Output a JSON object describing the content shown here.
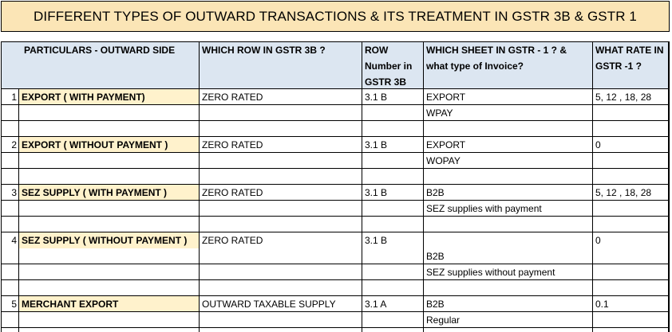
{
  "title": "DIFFERENT TYPES OF OUTWARD TRANSACTIONS & ITS TREATMENT IN GSTR 3B & GSTR 1",
  "headers": {
    "particulars": "PARTICULARS - OUTWARD SIDE",
    "row_3b": "WHICH ROW IN GSTR 3B ?",
    "row_number_1": "ROW",
    "row_number_2": "Number in",
    "row_number_3": "GSTR 3B",
    "sheet_1": "WHICH SHEET IN GSTR - 1 ? &",
    "sheet_2": "what type of Invoice?",
    "rate_1": "WHAT RATE IN",
    "rate_2": "GSTR -1 ?"
  },
  "rows": [
    {
      "num": "1",
      "particular": "EXPORT ( WITH PAYMENT)",
      "row3b": "ZERO RATED",
      "rownum": "3.1 B",
      "sheet": "EXPORT",
      "invoice": "WPAY",
      "rate": "5, 12 , 18,  28"
    },
    {
      "num": "2",
      "particular": "EXPORT ( WITHOUT PAYMENT )",
      "row3b": "ZERO RATED",
      "rownum": "3.1 B",
      "sheet": "EXPORT",
      "invoice": "WOPAY",
      "rate": "0"
    },
    {
      "num": "3",
      "particular": "SEZ SUPPLY ( WITH PAYMENT )",
      "row3b": "ZERO RATED",
      "rownum": "3.1 B",
      "sheet": "B2B",
      "invoice": "SEZ supplies with payment",
      "rate": "5, 12 , 18,  28"
    },
    {
      "num": "4",
      "particular": "SEZ SUPPLY ( WITHOUT PAYMENT )",
      "row3b": "ZERO RATED",
      "rownum": "3.1 B",
      "sheet": "B2B",
      "invoice": "SEZ supplies without payment",
      "rate": "0"
    },
    {
      "num": "5",
      "particular": "MERCHANT EXPORT",
      "row3b": "OUTWARD TAXABLE SUPPLY",
      "rownum": "3.1 A",
      "sheet": "B2B",
      "invoice": "Regular",
      "rate": "0.1"
    }
  ]
}
